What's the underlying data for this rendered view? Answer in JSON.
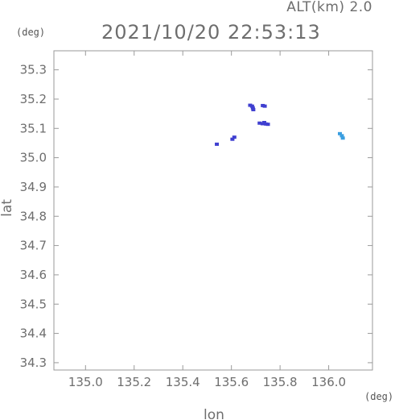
{
  "chart_data": {
    "type": "scatter",
    "title": "2021/10/20 22:53:13",
    "subtitle": "ALT(km) 2.0",
    "xlabel": "lon",
    "ylabel": "lat",
    "x_unit": "(deg)",
    "y_unit": "(deg)",
    "xlim": [
      134.87,
      136.18
    ],
    "ylim": [
      34.275,
      35.365
    ],
    "xticks": [
      135.0,
      135.2,
      135.4,
      135.6,
      135.8,
      136.0
    ],
    "xtick_labels": [
      "135.0",
      "135.2",
      "135.4",
      "135.6",
      "135.8",
      "136.0"
    ],
    "yticks": [
      34.3,
      34.4,
      34.5,
      34.6,
      34.7,
      34.8,
      34.9,
      35.0,
      35.1,
      35.2,
      35.3
    ],
    "ytick_labels": [
      "34.3",
      "34.4",
      "34.5",
      "34.6",
      "34.7",
      "34.8",
      "34.9",
      "35.0",
      "35.1",
      "35.2",
      "35.3"
    ],
    "colors": {
      "frame": "#9a9a9a",
      "text": "#6e6e6e",
      "echo_blue": "#3f3fd0",
      "echo_cyan": "#3a9ee0"
    },
    "points": [
      {
        "lon": 135.677,
        "lat": 35.179,
        "color": "#3f3fd0"
      },
      {
        "lon": 135.685,
        "lat": 35.176,
        "color": "#3f3fd0"
      },
      {
        "lon": 135.688,
        "lat": 35.17,
        "color": "#3f3fd0"
      },
      {
        "lon": 135.69,
        "lat": 35.164,
        "color": "#3f3fd0"
      },
      {
        "lon": 135.729,
        "lat": 35.178,
        "color": "#3f3fd0"
      },
      {
        "lon": 135.737,
        "lat": 35.176,
        "color": "#3f3fd0"
      },
      {
        "lon": 135.716,
        "lat": 35.118,
        "color": "#3f3fd0"
      },
      {
        "lon": 135.728,
        "lat": 35.116,
        "color": "#3f3fd0"
      },
      {
        "lon": 135.735,
        "lat": 35.12,
        "color": "#3f3fd0"
      },
      {
        "lon": 135.742,
        "lat": 35.115,
        "color": "#3f3fd0"
      },
      {
        "lon": 135.75,
        "lat": 35.114,
        "color": "#3f3fd0"
      },
      {
        "lon": 135.612,
        "lat": 35.07,
        "color": "#3f3fd0"
      },
      {
        "lon": 135.604,
        "lat": 35.063,
        "color": "#3f3fd0"
      },
      {
        "lon": 135.54,
        "lat": 35.046,
        "color": "#3f3fd0"
      },
      {
        "lon": 136.046,
        "lat": 35.082,
        "color": "#3a9ee0"
      },
      {
        "lon": 136.054,
        "lat": 35.075,
        "color": "#3a9ee0"
      },
      {
        "lon": 136.058,
        "lat": 35.067,
        "color": "#3a9ee0"
      }
    ]
  }
}
